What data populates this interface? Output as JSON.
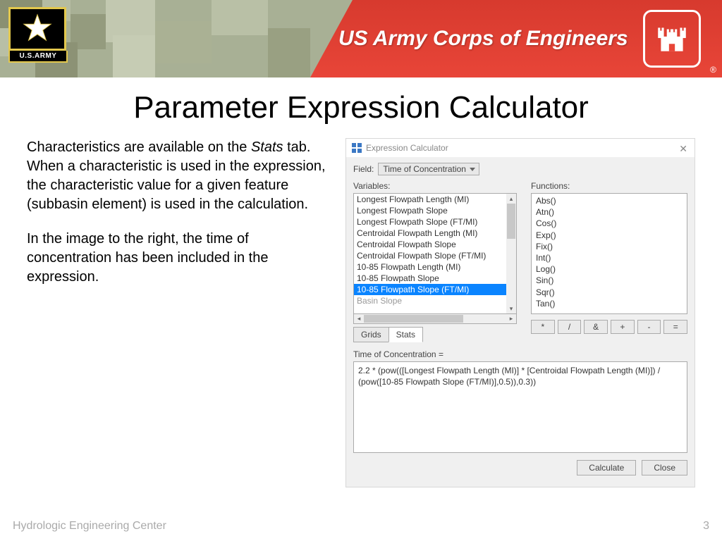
{
  "banner": {
    "army_label": "U.S.ARMY",
    "title": "US Army Corps of Engineers"
  },
  "slide": {
    "title": "Parameter Expression Calculator",
    "para1_a": "Characteristics are available on the ",
    "para1_stats": "Stats",
    "para1_b": " tab. When a characteristic is used in the expression, the characteristic value for a given feature (subbasin element) is used in the calculation.",
    "para2": "In the image to the right, the time of concentration has been included in the expression."
  },
  "dialog": {
    "title": "Expression Calculator",
    "field_label": "Field:",
    "field_value": "Time of Concentration",
    "variables_label": "Variables:",
    "functions_label": "Functions:",
    "variables": [
      "Longest Flowpath Length (MI)",
      "Longest Flowpath Slope",
      "Longest Flowpath Slope (FT/MI)",
      "Centroidal Flowpath Length (MI)",
      "Centroidal Flowpath Slope",
      "Centroidal Flowpath Slope (FT/MI)",
      "10-85 Flowpath Length (MI)",
      "10-85 Flowpath Slope",
      "10-85 Flowpath Slope (FT/MI)"
    ],
    "variables_cut": "Basin Slope",
    "selected_index": 8,
    "tabs": [
      "Grids",
      "Stats"
    ],
    "active_tab": 1,
    "functions": [
      "Abs()",
      "Atn()",
      "Cos()",
      "Exp()",
      "Fix()",
      "Int()",
      "Log()",
      "Sin()",
      "Sqr()",
      "Tan()"
    ],
    "operators": [
      "*",
      "/",
      "&",
      "+",
      "-",
      "="
    ],
    "expr_label": "Time of Concentration =",
    "expression": "2.2 * (pow(([Longest Flowpath Length (MI)] * [Centroidal Flowpath Length (MI)]) / (pow([10-85 Flowpath Slope (FT/MI)],0.5)),0.3))",
    "calculate": "Calculate",
    "close": "Close"
  },
  "footer": {
    "left": "Hydrologic Engineering Center",
    "page": "3"
  },
  "colors": {
    "selection": "#0a84ff",
    "banner_red": "#e84538",
    "camo_base": "#a8b095"
  }
}
